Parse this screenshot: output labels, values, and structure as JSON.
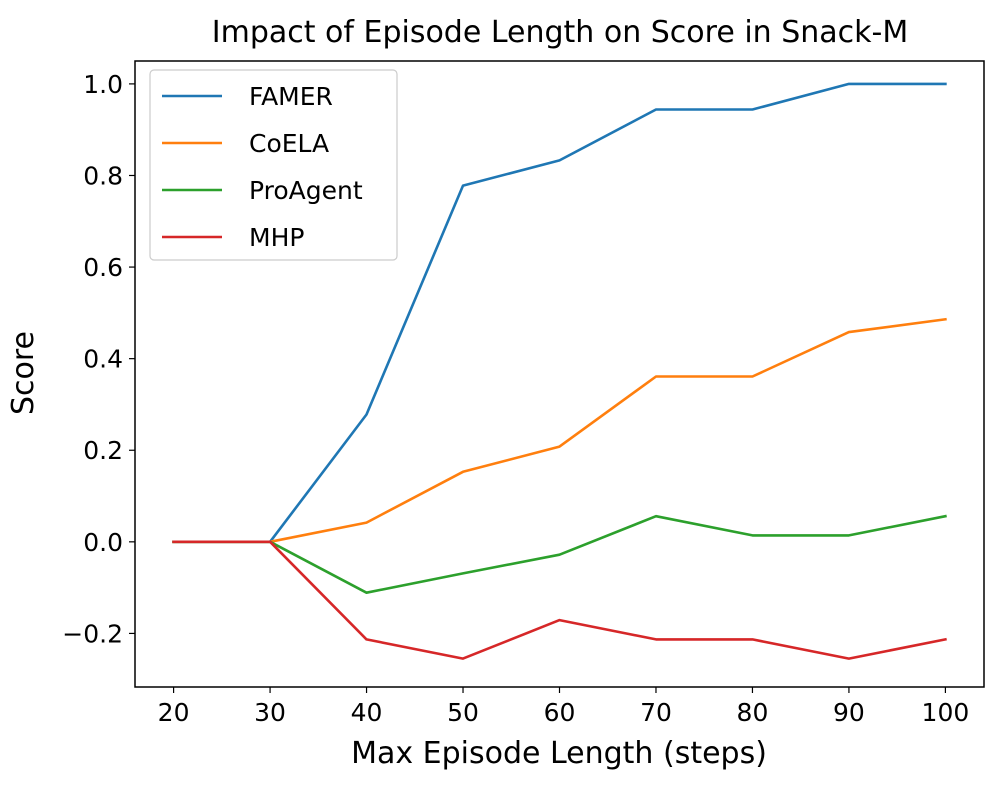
{
  "chart_data": {
    "type": "line",
    "title": "Impact of Episode Length on Score in Snack-M",
    "xlabel": "Max Episode Length (steps)",
    "ylabel": "Score",
    "x": [
      20,
      30,
      40,
      50,
      60,
      70,
      80,
      90,
      100
    ],
    "xlim": [
      16,
      104
    ],
    "ylim": [
      -0.317,
      1.05
    ],
    "xticks": [
      20,
      30,
      40,
      50,
      60,
      70,
      80,
      90,
      100
    ],
    "yticks": [
      -0.2,
      0.0,
      0.2,
      0.4,
      0.6,
      0.8,
      1.0
    ],
    "ytick_labels": [
      "−0.2",
      "0.0",
      "0.2",
      "0.4",
      "0.6",
      "0.8",
      "1.0"
    ],
    "grid": false,
    "legend_position": "top-left",
    "series": [
      {
        "name": "FAMER",
        "color": "#1f77b4",
        "values": [
          0.0,
          0.0,
          0.278,
          0.778,
          0.833,
          0.944,
          0.944,
          1.0,
          1.0
        ]
      },
      {
        "name": "CoELA",
        "color": "#ff7f0e",
        "values": [
          0.0,
          0.0,
          0.042,
          0.153,
          0.208,
          0.361,
          0.361,
          0.458,
          0.486
        ]
      },
      {
        "name": "ProAgent",
        "color": "#2ca02c",
        "values": [
          0.0,
          0.0,
          -0.111,
          -0.069,
          -0.028,
          0.056,
          0.014,
          0.014,
          0.056
        ]
      },
      {
        "name": "MHP",
        "color": "#d62728",
        "values": [
          0.0,
          0.0,
          -0.213,
          -0.255,
          -0.171,
          -0.213,
          -0.213,
          -0.255,
          -0.213
        ]
      }
    ]
  }
}
